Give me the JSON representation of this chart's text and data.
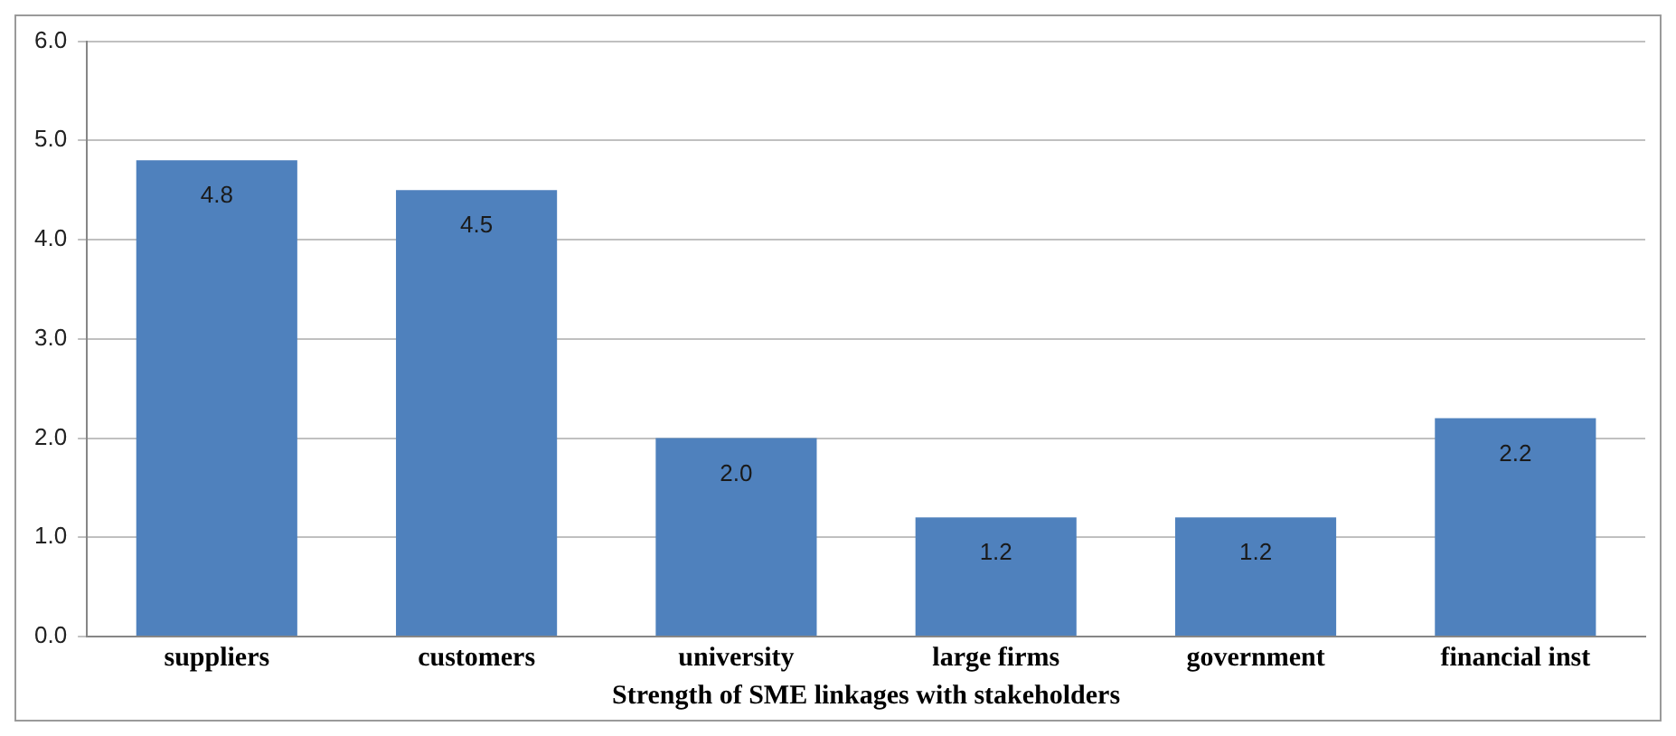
{
  "chart_data": {
    "type": "bar",
    "xlabel": "Strength of SME linkages with stakeholders",
    "categories": [
      "suppliers",
      "customers",
      "university",
      "large firms",
      "government",
      "financial inst"
    ],
    "values": [
      4.8,
      4.5,
      2.0,
      1.2,
      1.2,
      2.2
    ],
    "value_labels": [
      "4.8",
      "4.5",
      "2.0",
      "1.2",
      "1.2",
      "2.2"
    ],
    "color": "#4f81bd",
    "ylim": [
      0,
      6
    ],
    "yticks": [
      {
        "value": 0,
        "label": "0.0"
      },
      {
        "value": 1,
        "label": "1.0"
      },
      {
        "value": 2,
        "label": "2.0"
      },
      {
        "value": 3,
        "label": "3.0"
      },
      {
        "value": 4,
        "label": "4.0"
      },
      {
        "value": 5,
        "label": "5.0"
      },
      {
        "value": 6,
        "label": "6.0"
      }
    ],
    "grid": "y",
    "legend": false
  }
}
